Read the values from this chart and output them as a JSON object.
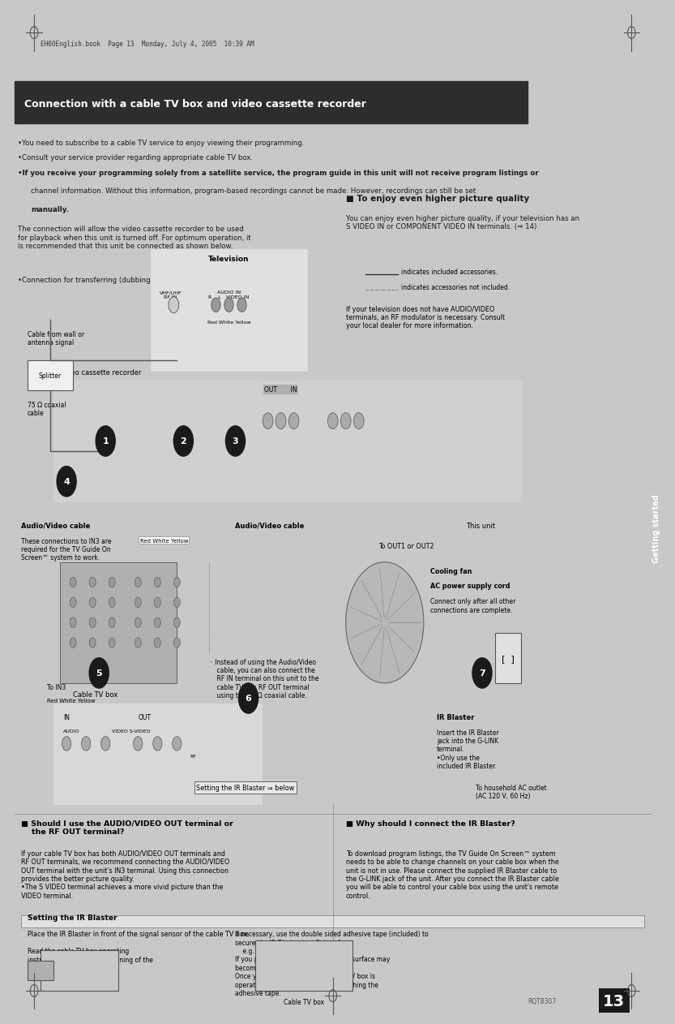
{
  "page_bg": "#ffffff",
  "outer_bg": "#c8c8c8",
  "header_strip_color": "#c8c8c8",
  "title_bar_bg": "#2d2d2d",
  "title_bar_text": "Connection with a cable TV box and video cassette recorder",
  "title_bar_text_color": "#ffffff",
  "section_header_color": "#1a1a1a",
  "body_text_color": "#1a1a1a",
  "sidebar_text": "Getting started",
  "sidebar_bg": "#555555",
  "sidebar_text_color": "#ffffff",
  "page_number": "13",
  "model_code": "RQT8307",
  "header_file_text": "EH60English.book  Page 13  Monday, July 4, 2005  10:39 AM",
  "bullet_points_top": [
    "You need to subscribe to a cable TV service to enjoy viewing their programming.",
    "Consult your service provider regarding appropriate cable TV box.",
    "If you receive your programming solely from a satellite service, the program guide in this unit will not receive program listings or\n    channel information. Without this information, program-based recordings cannot be made. However, recordings can still be set\n    manually."
  ],
  "connection_text1": "The connection will allow the video cassette recorder to be used\nfor playback when this unit is turned off. For optimum operation, it\nis recommended that this unit be connected as shown below.",
  "connection_text2": "•Connection for transferring (dubbing) from video tape (⇒ 14)",
  "enjoy_header": "■ To enjoy even higher picture quality",
  "enjoy_text": "You can enjoy even higher picture quality, if your television has an\nS VIDEO IN or COMPONENT VIDEO IN terminals. (⇒ 14)",
  "legend_included": "indicates included accessories.",
  "legend_not_included": "indicates accessories not included.",
  "tv_note": "If your television does not have AUDIO/VIDEO\nterminals, an RF modulator is necessary. Consult\nyour local dealer for more information.",
  "section2_header": "■ Should I use the AUDIO/VIDEO OUT terminal or\n    the RF OUT terminal?",
  "section2_text": "If your cable TV box has both AUDIO/VIDEO OUT terminals and\nRF OUT terminals, we recommend connecting the AUDIO/VIDEO\nOUT terminal with the unit's IN3 terminal. Using this connection\nprovides the better picture quality.\n•The S VIDEO terminal achieves a more vivid picture than the\nVIDEO terminal.",
  "section3_header": "Setting the IR Blaster",
  "section3_text": "Place the IR Blaster in front of the signal sensor of the cable TV box.",
  "section3_left": "Read the cable TV box operating\ninstructions regarding positioning of the\nsignal sensor.",
  "section3_right": "If necessary, use the double sided adhesive tape (included) to\nsecure the IR Blaster to a flat surface.\n    e.g. Television stand surface\nIf you peel off the adhesive tape, the surface may\nbecome damaged.\nOnce you have confirmed the cable TV box is\noperating correctly, secure it by attaching the\nadhesive tape.",
  "section3_caption": "Cable TV box",
  "section4_header": "■ Why should I connect the IR Blaster?",
  "section4_text": "To download program listings, the TV Guide On Screen™ system\nneeds to be able to change channels on your cable box when the\nunit is not in use. Please connect the supplied IR Blaster cable to\nthe G-LINK jack of the unit. After you connect the IR Blaster cable\nyou will be able to control your cable box using the unit's remote\ncontrol.",
  "diagram_labels": {
    "cable_from_wall": "Cable from wall or\nantenna signal",
    "splitter": "Splitter",
    "coaxial": "75 Ω coaxial\ncable",
    "television": "Television",
    "whf_uhf": "VHF/UHF\nRF IN",
    "audio_in": "AUDIO IN\nR    L   VIDEO IN",
    "red_white_yellow_tv": "Red White Yellow",
    "vcr_label": "Video cassette recorder",
    "out_in": "OUT       IN",
    "av_cable1": "Audio/Video cable",
    "av_cable1_note": "These connections to IN3 are\nrequired for the TV Guide On\nScreen™ system to work.",
    "av_cable2": "Audio/Video cable",
    "to_out1": "To OUT1 or OUT2",
    "this_unit": "This unit",
    "red_white_yellow2": "Red White Yellow",
    "to_in3": "To IN3",
    "rf_note": "·· Instead of using the Audio/Video\n    cable, you can also connect the\n    RF IN terminal on this unit to the\n    cable TV box RF OUT terminal\n    using the 75 Ω coaxial cable.",
    "cooling_fan": "Cooling fan",
    "ac_power": "AC power supply cord",
    "ac_note": "Connect only after all other\nconnections are complete.",
    "ir_blaster": "IR Blaster",
    "ir_note": "Insert the IR Blaster\njack into the G-LINK\nterminal.\n•Only use the\nincluded IR Blaster.",
    "ac_outlet": "To household AC outlet\n(AC 120 V, 60 Hz)",
    "cable_tv_box": "Cable TV box",
    "num1": "1",
    "num2": "2",
    "num3": "3",
    "num4": "4",
    "num5": "5",
    "num6": "6",
    "num7": "7"
  }
}
